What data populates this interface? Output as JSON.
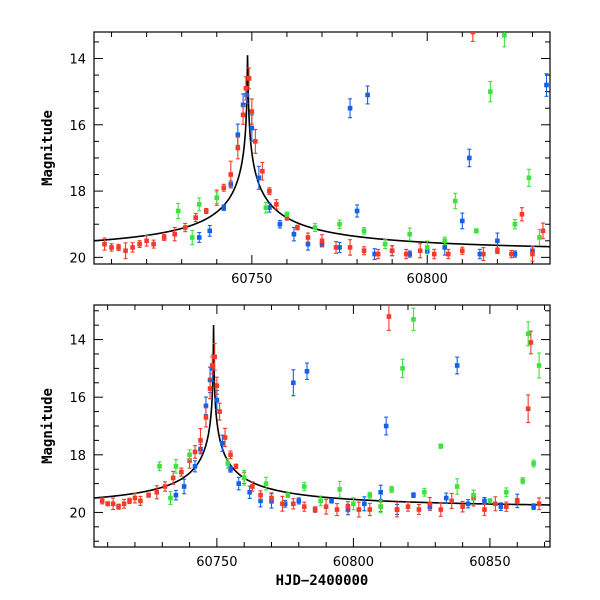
{
  "colors": {
    "blue": "#1560e8",
    "red": "#f03c28",
    "green": "#3ee23e",
    "model": "#000000"
  },
  "chart_data": [
    {
      "type": "scatter",
      "panel": "top",
      "title": "",
      "xlabel": "",
      "ylabel": "Magnitude",
      "xlim": [
        60705,
        60835
      ],
      "ylim": [
        20.2,
        13.2
      ],
      "y_inverted": true,
      "xticks": [
        60750,
        60800
      ],
      "yticks": [
        14,
        16,
        18,
        20
      ],
      "grid": false,
      "model": {
        "t0": 60748.8,
        "peak": 13.3,
        "baseline": 19.9
      },
      "series": [
        {
          "color": "blue",
          "points": [
            [
              60735,
              19.4
            ],
            [
              60738,
              19.2
            ],
            [
              60742,
              18.5
            ],
            [
              60744,
              17.8
            ],
            [
              60746,
              16.3
            ],
            [
              60747.5,
              15.4
            ],
            [
              60748.5,
              15.1
            ],
            [
              60750,
              16.1
            ],
            [
              60752,
              17.6
            ],
            [
              60755,
              18.5
            ],
            [
              60758,
              19.0
            ],
            [
              60762,
              19.3
            ],
            [
              60766,
              19.6
            ],
            [
              60770,
              19.6
            ],
            [
              60775,
              19.7
            ],
            [
              60778,
              15.5
            ],
            [
              60780,
              18.6
            ],
            [
              60783,
              15.1
            ],
            [
              60785,
              19.9
            ],
            [
              60790,
              19.8
            ],
            [
              60795,
              19.9
            ],
            [
              60800,
              19.8
            ],
            [
              60805,
              19.7
            ],
            [
              60810,
              18.9
            ],
            [
              60812,
              17.0
            ],
            [
              60815,
              19.9
            ],
            [
              60820,
              19.5
            ],
            [
              60825,
              19.9
            ],
            [
              60830,
              19.8
            ],
            [
              60834,
              14.8
            ]
          ]
        },
        {
          "color": "red",
          "points": [
            [
              60708,
              19.6
            ],
            [
              60710,
              19.7
            ],
            [
              60712,
              19.7
            ],
            [
              60714,
              19.8
            ],
            [
              60716,
              19.7
            ],
            [
              60718,
              19.6
            ],
            [
              60720,
              19.5
            ],
            [
              60722,
              19.6
            ],
            [
              60725,
              19.4
            ],
            [
              60728,
              19.3
            ],
            [
              60731,
              19.1
            ],
            [
              60734,
              18.8
            ],
            [
              60737,
              18.6
            ],
            [
              60740,
              18.2
            ],
            [
              60742,
              17.9
            ],
            [
              60744,
              17.5
            ],
            [
              60746,
              16.7
            ],
            [
              60747.5,
              15.7
            ],
            [
              60748.3,
              14.9
            ],
            [
              60749.2,
              14.6
            ],
            [
              60750,
              15.6
            ],
            [
              60751,
              16.5
            ],
            [
              60753,
              17.4
            ],
            [
              60755,
              18.0
            ],
            [
              60757,
              18.4
            ],
            [
              60760,
              18.8
            ],
            [
              60763,
              19.1
            ],
            [
              60766,
              19.4
            ],
            [
              60770,
              19.5
            ],
            [
              60774,
              19.7
            ],
            [
              60778,
              19.7
            ],
            [
              60782,
              19.8
            ],
            [
              60786,
              19.9
            ],
            [
              60790,
              19.8
            ],
            [
              60794,
              19.9
            ],
            [
              60798,
              19.8
            ],
            [
              60802,
              19.9
            ],
            [
              60806,
              19.9
            ],
            [
              60810,
              19.8
            ],
            [
              60813,
              13.2
            ],
            [
              60816,
              19.9
            ],
            [
              60820,
              19.8
            ],
            [
              60824,
              19.9
            ],
            [
              60827,
              18.7
            ],
            [
              60830,
              19.9
            ],
            [
              60833,
              19.2
            ]
          ]
        },
        {
          "color": "green",
          "points": [
            [
              60729,
              18.6
            ],
            [
              60733,
              19.4
            ],
            [
              60735,
              18.4
            ],
            [
              60740,
              18.2
            ],
            [
              60754,
              18.5
            ],
            [
              60760,
              18.7
            ],
            [
              60768,
              19.1
            ],
            [
              60775,
              19.0
            ],
            [
              60782,
              19.2
            ],
            [
              60788,
              19.6
            ],
            [
              60795,
              19.3
            ],
            [
              60800,
              19.7
            ],
            [
              60805,
              19.5
            ],
            [
              60808,
              18.3
            ],
            [
              60814,
              19.2
            ],
            [
              60818,
              15.0
            ],
            [
              60822,
              13.3
            ],
            [
              60825,
              19.0
            ],
            [
              60829,
              17.6
            ],
            [
              60832,
              19.4
            ]
          ]
        }
      ]
    },
    {
      "type": "scatter",
      "panel": "bottom",
      "title": "",
      "xlabel": "HJD−2400000",
      "ylabel": "Magnitude",
      "xlim": [
        60705,
        60872
      ],
      "ylim": [
        21.2,
        12.8
      ],
      "y_inverted": true,
      "xticks": [
        60750,
        60800,
        60850
      ],
      "yticks": [
        14,
        16,
        18,
        20
      ],
      "grid": false,
      "model": {
        "t0": 60748.8,
        "peak": 13.3,
        "baseline": 19.9
      },
      "series": [
        {
          "color": "blue",
          "points": [
            [
              60735,
              19.4
            ],
            [
              60738,
              19.1
            ],
            [
              60742,
              18.4
            ],
            [
              60744,
              17.8
            ],
            [
              60746,
              16.3
            ],
            [
              60747.5,
              15.4
            ],
            [
              60748.5,
              15.0
            ],
            [
              60750,
              16.1
            ],
            [
              60752,
              17.6
            ],
            [
              60755,
              18.5
            ],
            [
              60758,
              19.0
            ],
            [
              60762,
              19.3
            ],
            [
              60766,
              19.6
            ],
            [
              60770,
              19.6
            ],
            [
              60775,
              19.7
            ],
            [
              60778,
              15.5
            ],
            [
              60780,
              19.6
            ],
            [
              60783,
              15.1
            ],
            [
              60786,
              19.9
            ],
            [
              60792,
              19.6
            ],
            [
              60798,
              19.9
            ],
            [
              60804,
              19.7
            ],
            [
              60810,
              19.3
            ],
            [
              60812,
              17.0
            ],
            [
              60816,
              19.9
            ],
            [
              60822,
              19.4
            ],
            [
              60828,
              19.8
            ],
            [
              60834,
              19.5
            ],
            [
              60838,
              14.9
            ],
            [
              60842,
              19.7
            ],
            [
              60848,
              19.6
            ],
            [
              60854,
              19.8
            ],
            [
              60860,
              19.6
            ],
            [
              60866,
              19.8
            ]
          ]
        },
        {
          "color": "red",
          "points": [
            [
              60708,
              19.6
            ],
            [
              60710,
              19.7
            ],
            [
              60712,
              19.7
            ],
            [
              60714,
              19.8
            ],
            [
              60716,
              19.7
            ],
            [
              60718,
              19.6
            ],
            [
              60720,
              19.5
            ],
            [
              60722,
              19.6
            ],
            [
              60725,
              19.4
            ],
            [
              60728,
              19.3
            ],
            [
              60731,
              19.1
            ],
            [
              60734,
              18.8
            ],
            [
              60737,
              18.6
            ],
            [
              60740,
              18.2
            ],
            [
              60742,
              17.9
            ],
            [
              60744,
              17.5
            ],
            [
              60746,
              16.7
            ],
            [
              60747.5,
              15.7
            ],
            [
              60748.3,
              14.9
            ],
            [
              60749.2,
              14.6
            ],
            [
              60750,
              15.6
            ],
            [
              60751,
              16.5
            ],
            [
              60753,
              17.4
            ],
            [
              60755,
              18.0
            ],
            [
              60757,
              18.4
            ],
            [
              60760,
              18.8
            ],
            [
              60763,
              19.1
            ],
            [
              60766,
              19.4
            ],
            [
              60770,
              19.5
            ],
            [
              60774,
              19.7
            ],
            [
              60778,
              19.7
            ],
            [
              60782,
              19.8
            ],
            [
              60786,
              19.9
            ],
            [
              60790,
              19.8
            ],
            [
              60794,
              19.9
            ],
            [
              60798,
              19.8
            ],
            [
              60802,
              19.9
            ],
            [
              60806,
              19.9
            ],
            [
              60810,
              19.8
            ],
            [
              60813,
              13.2
            ],
            [
              60816,
              19.9
            ],
            [
              60820,
              19.8
            ],
            [
              60824,
              19.9
            ],
            [
              60828,
              19.7
            ],
            [
              60832,
              19.9
            ],
            [
              60836,
              19.6
            ],
            [
              60840,
              19.8
            ],
            [
              60844,
              19.5
            ],
            [
              60848,
              19.9
            ],
            [
              60852,
              19.7
            ],
            [
              60856,
              19.8
            ],
            [
              60860,
              19.6
            ],
            [
              60864,
              16.4
            ],
            [
              60865,
              14.1
            ],
            [
              60868,
              19.7
            ]
          ]
        },
        {
          "color": "green",
          "points": [
            [
              60729,
              18.4
            ],
            [
              60733,
              19.5
            ],
            [
              60735,
              18.4
            ],
            [
              60740,
              18.0
            ],
            [
              60754,
              18.3
            ],
            [
              60760,
              18.8
            ],
            [
              60768,
              19.0
            ],
            [
              60776,
              19.4
            ],
            [
              60782,
              19.1
            ],
            [
              60788,
              19.6
            ],
            [
              60795,
              19.2
            ],
            [
              60800,
              19.7
            ],
            [
              60806,
              19.4
            ],
            [
              60810,
              19.8
            ],
            [
              60814,
              19.2
            ],
            [
              60818,
              15.0
            ],
            [
              60822,
              13.3
            ],
            [
              60826,
              19.3
            ],
            [
              60832,
              17.7
            ],
            [
              60838,
              19.1
            ],
            [
              60844,
              19.4
            ],
            [
              60850,
              19.6
            ],
            [
              60856,
              19.3
            ],
            [
              60862,
              18.9
            ],
            [
              60864,
              13.8
            ],
            [
              60866,
              18.3
            ],
            [
              60868,
              14.9
            ]
          ]
        }
      ]
    }
  ]
}
